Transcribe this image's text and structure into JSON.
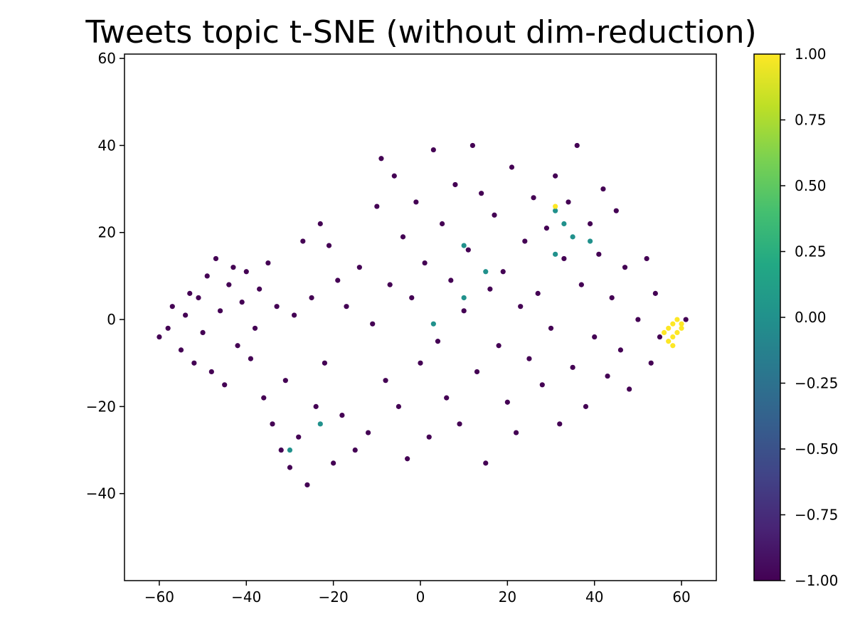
{
  "chart_data": {
    "type": "scatter",
    "title": "Tweets topic t-SNE (without dim-reduction)",
    "xlabel": "",
    "ylabel": "",
    "xlim": [
      -68,
      68
    ],
    "ylim": [
      -60,
      61
    ],
    "x_ticks": [
      -60,
      -40,
      -20,
      0,
      20,
      40,
      60
    ],
    "x_tick_labels": [
      "−60",
      "−40",
      "−20",
      "0",
      "20",
      "40",
      "60"
    ],
    "y_ticks": [
      60,
      40,
      20,
      0,
      -20,
      -40
    ],
    "y_tick_labels": [
      "60",
      "40",
      "20",
      "0",
      "−20",
      "−40"
    ],
    "grid": false,
    "legend": "none",
    "colorbar": {
      "colormap": "viridis",
      "range": [
        -1.0,
        1.0
      ],
      "ticks": [
        1.0,
        0.75,
        0.5,
        0.25,
        0.0,
        -0.25,
        -0.5,
        -0.75,
        -1.0
      ],
      "tick_labels": [
        "1.00",
        "0.75",
        "0.50",
        "0.25",
        "0.00",
        "−0.25",
        "−0.50",
        "−0.75",
        "−1.00"
      ],
      "stops": [
        "#440154",
        "#482475",
        "#414487",
        "#355f8d",
        "#2a788e",
        "#21918c",
        "#22a884",
        "#44bf70",
        "#7ad151",
        "#bddf26",
        "#fde725"
      ]
    },
    "point_color_values": {
      "majority": -1,
      "teal_points": 0,
      "yellow_points": 1
    },
    "points": [
      {
        "x": -60,
        "y": -4,
        "v": -1
      },
      {
        "x": -58,
        "y": -2,
        "v": -1
      },
      {
        "x": -57,
        "y": 3,
        "v": -1
      },
      {
        "x": -55,
        "y": -7,
        "v": -1
      },
      {
        "x": -54,
        "y": 1,
        "v": -1
      },
      {
        "x": -53,
        "y": 6,
        "v": -1
      },
      {
        "x": -52,
        "y": -10,
        "v": -1
      },
      {
        "x": -51,
        "y": 5,
        "v": -1
      },
      {
        "x": -50,
        "y": -3,
        "v": -1
      },
      {
        "x": -49,
        "y": 10,
        "v": -1
      },
      {
        "x": -48,
        "y": -12,
        "v": -1
      },
      {
        "x": -47,
        "y": 14,
        "v": -1
      },
      {
        "x": -46,
        "y": 2,
        "v": -1
      },
      {
        "x": -45,
        "y": -15,
        "v": -1
      },
      {
        "x": -44,
        "y": 8,
        "v": -1
      },
      {
        "x": -43,
        "y": 12,
        "v": -1
      },
      {
        "x": -42,
        "y": -6,
        "v": -1
      },
      {
        "x": -41,
        "y": 4,
        "v": -1
      },
      {
        "x": -40,
        "y": 11,
        "v": -1
      },
      {
        "x": -39,
        "y": -9,
        "v": -1
      },
      {
        "x": -38,
        "y": -2,
        "v": -1
      },
      {
        "x": -37,
        "y": 7,
        "v": -1
      },
      {
        "x": -36,
        "y": -18,
        "v": -1
      },
      {
        "x": -35,
        "y": 13,
        "v": -1
      },
      {
        "x": -34,
        "y": -24,
        "v": -1
      },
      {
        "x": -33,
        "y": 3,
        "v": -1
      },
      {
        "x": -32,
        "y": -30,
        "v": -1
      },
      {
        "x": -31,
        "y": -14,
        "v": -1
      },
      {
        "x": -30,
        "y": -34,
        "v": -1
      },
      {
        "x": -29,
        "y": 1,
        "v": -1
      },
      {
        "x": -28,
        "y": -27,
        "v": -1
      },
      {
        "x": -27,
        "y": 18,
        "v": -1
      },
      {
        "x": -26,
        "y": -38,
        "v": -1
      },
      {
        "x": -25,
        "y": 5,
        "v": -1
      },
      {
        "x": -24,
        "y": -20,
        "v": -1
      },
      {
        "x": -23,
        "y": 22,
        "v": -1
      },
      {
        "x": -22,
        "y": -10,
        "v": -1
      },
      {
        "x": -21,
        "y": 17,
        "v": -1
      },
      {
        "x": -20,
        "y": -33,
        "v": -1
      },
      {
        "x": -19,
        "y": 9,
        "v": -1
      },
      {
        "x": -18,
        "y": -22,
        "v": -1
      },
      {
        "x": -17,
        "y": 3,
        "v": -1
      },
      {
        "x": -15,
        "y": -30,
        "v": -1
      },
      {
        "x": -14,
        "y": 12,
        "v": -1
      },
      {
        "x": -12,
        "y": -26,
        "v": -1
      },
      {
        "x": -11,
        "y": -1,
        "v": -1
      },
      {
        "x": -10,
        "y": 26,
        "v": -1
      },
      {
        "x": -9,
        "y": 37,
        "v": -1
      },
      {
        "x": -8,
        "y": -14,
        "v": -1
      },
      {
        "x": -7,
        "y": 8,
        "v": -1
      },
      {
        "x": -6,
        "y": 33,
        "v": -1
      },
      {
        "x": -5,
        "y": -20,
        "v": -1
      },
      {
        "x": -4,
        "y": 19,
        "v": -1
      },
      {
        "x": -3,
        "y": -32,
        "v": -1
      },
      {
        "x": -2,
        "y": 5,
        "v": -1
      },
      {
        "x": -1,
        "y": 27,
        "v": -1
      },
      {
        "x": 0,
        "y": -10,
        "v": -1
      },
      {
        "x": 1,
        "y": 13,
        "v": -1
      },
      {
        "x": 2,
        "y": -27,
        "v": -1
      },
      {
        "x": 3,
        "y": 39,
        "v": -1
      },
      {
        "x": 4,
        "y": -5,
        "v": -1
      },
      {
        "x": 5,
        "y": 22,
        "v": -1
      },
      {
        "x": 6,
        "y": -18,
        "v": -1
      },
      {
        "x": 7,
        "y": 9,
        "v": -1
      },
      {
        "x": 8,
        "y": 31,
        "v": -1
      },
      {
        "x": 9,
        "y": -24,
        "v": -1
      },
      {
        "x": 10,
        "y": 2,
        "v": -1
      },
      {
        "x": 11,
        "y": 16,
        "v": -1
      },
      {
        "x": 12,
        "y": 40,
        "v": -1
      },
      {
        "x": 13,
        "y": -12,
        "v": -1
      },
      {
        "x": 14,
        "y": 29,
        "v": -1
      },
      {
        "x": 15,
        "y": -33,
        "v": -1
      },
      {
        "x": 16,
        "y": 7,
        "v": -1
      },
      {
        "x": 17,
        "y": 24,
        "v": -1
      },
      {
        "x": 18,
        "y": -6,
        "v": -1
      },
      {
        "x": 19,
        "y": 11,
        "v": -1
      },
      {
        "x": 20,
        "y": -19,
        "v": -1
      },
      {
        "x": 21,
        "y": 35,
        "v": -1
      },
      {
        "x": 22,
        "y": -26,
        "v": -1
      },
      {
        "x": 23,
        "y": 3,
        "v": -1
      },
      {
        "x": 24,
        "y": 18,
        "v": -1
      },
      {
        "x": 25,
        "y": -9,
        "v": -1
      },
      {
        "x": 26,
        "y": 28,
        "v": -1
      },
      {
        "x": 27,
        "y": 6,
        "v": -1
      },
      {
        "x": 28,
        "y": -15,
        "v": -1
      },
      {
        "x": 29,
        "y": 21,
        "v": -1
      },
      {
        "x": 30,
        "y": -2,
        "v": -1
      },
      {
        "x": 31,
        "y": 33,
        "v": -1
      },
      {
        "x": 32,
        "y": -24,
        "v": -1
      },
      {
        "x": 33,
        "y": 14,
        "v": -1
      },
      {
        "x": 34,
        "y": 27,
        "v": -1
      },
      {
        "x": 35,
        "y": -11,
        "v": -1
      },
      {
        "x": 36,
        "y": 40,
        "v": -1
      },
      {
        "x": 37,
        "y": 8,
        "v": -1
      },
      {
        "x": 38,
        "y": -20,
        "v": -1
      },
      {
        "x": 39,
        "y": 22,
        "v": -1
      },
      {
        "x": 40,
        "y": -4,
        "v": -1
      },
      {
        "x": 41,
        "y": 15,
        "v": -1
      },
      {
        "x": 42,
        "y": 30,
        "v": -1
      },
      {
        "x": 43,
        "y": -13,
        "v": -1
      },
      {
        "x": 44,
        "y": 5,
        "v": -1
      },
      {
        "x": 45,
        "y": 25,
        "v": -1
      },
      {
        "x": 46,
        "y": -7,
        "v": -1
      },
      {
        "x": 47,
        "y": 12,
        "v": -1
      },
      {
        "x": 48,
        "y": -16,
        "v": -1
      },
      {
        "x": 50,
        "y": 0,
        "v": -1
      },
      {
        "x": 52,
        "y": 14,
        "v": -1
      },
      {
        "x": 53,
        "y": -10,
        "v": -1
      },
      {
        "x": 54,
        "y": 6,
        "v": -1
      },
      {
        "x": 55,
        "y": -4,
        "v": -1
      },
      {
        "x": 61,
        "y": 0,
        "v": -1
      },
      {
        "x": 31,
        "y": 25,
        "v": 0
      },
      {
        "x": 33,
        "y": 22,
        "v": 0
      },
      {
        "x": 35,
        "y": 19,
        "v": 0
      },
      {
        "x": 39,
        "y": 18,
        "v": 0
      },
      {
        "x": 31,
        "y": 15,
        "v": 0
      },
      {
        "x": 10,
        "y": 17,
        "v": 0
      },
      {
        "x": 15,
        "y": 11,
        "v": 0
      },
      {
        "x": 10,
        "y": 5,
        "v": 0
      },
      {
        "x": 3,
        "y": -1,
        "v": 0
      },
      {
        "x": -23,
        "y": -24,
        "v": 0
      },
      {
        "x": -30,
        "y": -30,
        "v": 0
      },
      {
        "x": 31,
        "y": 26,
        "v": 1
      },
      {
        "x": 56,
        "y": -3,
        "v": 1
      },
      {
        "x": 57,
        "y": -5,
        "v": 1
      },
      {
        "x": 57,
        "y": -2,
        "v": 1
      },
      {
        "x": 58,
        "y": -4,
        "v": 1
      },
      {
        "x": 58,
        "y": -1,
        "v": 1
      },
      {
        "x": 59,
        "y": -3,
        "v": 1
      },
      {
        "x": 59,
        "y": 0,
        "v": 1
      },
      {
        "x": 60,
        "y": -2,
        "v": 1
      },
      {
        "x": 60,
        "y": -1,
        "v": 1
      },
      {
        "x": 58,
        "y": -6,
        "v": 1
      }
    ]
  }
}
